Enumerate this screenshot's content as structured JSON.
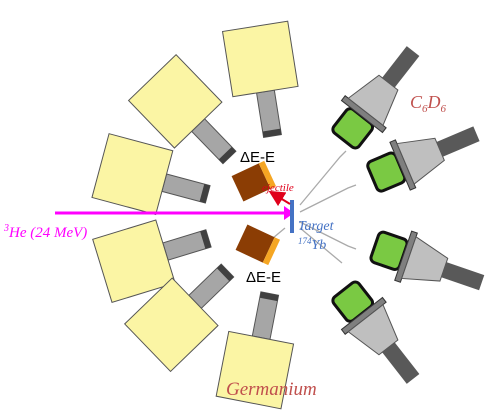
{
  "detectors": {
    "delta_e_upper": "ΔE-E",
    "delta_e_lower": "ΔE-E"
  },
  "ejectile": "ejectile",
  "target": {
    "name": "Target",
    "isotope_mass": "174",
    "isotope_element": "Yb"
  },
  "beam": {
    "mass": "3",
    "label": "He (24 MeV)"
  },
  "c6d6": {
    "parts": [
      "C",
      "6",
      "D",
      "6"
    ]
  },
  "germanium": "Germanium"
}
